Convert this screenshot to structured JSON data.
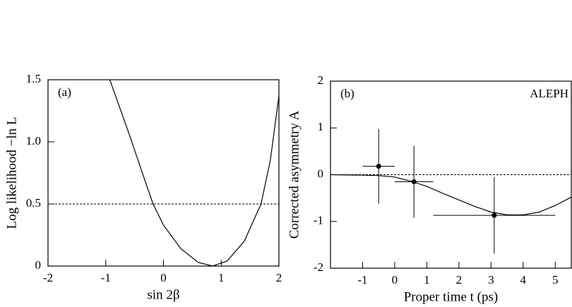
{
  "chart_data": [
    {
      "type": "line",
      "panel_label": "(a)",
      "xlabel": "sin 2β",
      "ylabel": "Log likelihood  −ln L",
      "x": [
        -0.93,
        -0.6,
        -0.3,
        -0.18,
        0,
        0.3,
        0.6,
        0.85,
        1.1,
        1.4,
        1.69,
        1.85,
        2.0
      ],
      "values": [
        1.5,
        1.07,
        0.66,
        0.5,
        0.33,
        0.14,
        0.03,
        0,
        0.04,
        0.2,
        0.5,
        0.85,
        1.37
      ],
      "hline": 0.5,
      "color": "#000000",
      "xlim": [
        -2,
        2
      ],
      "xticks": [
        -2,
        -1,
        0,
        1,
        2
      ],
      "ylim": [
        0,
        1.5
      ],
      "yticks": [
        0,
        0.5,
        {
          "value": 1,
          "label": "1.0"
        },
        1.5
      ]
    },
    {
      "type": "errorbar",
      "panel_label": "(b)",
      "annotation": "ALEPH",
      "xlabel": "Proper time  t  (ps)",
      "ylabel": "Corrected asymmetry  A",
      "curve": {
        "x": [
          -2,
          -1,
          -0.5,
          0,
          0.5,
          1,
          1.5,
          2,
          2.5,
          3,
          3.5,
          4,
          4.5,
          5,
          5.5
        ],
        "values": [
          0,
          -0.01,
          -0.02,
          -0.05,
          -0.14,
          -0.25,
          -0.4,
          -0.54,
          -0.68,
          -0.8,
          -0.86,
          -0.86,
          -0.8,
          -0.66,
          -0.48
        ]
      },
      "points": {
        "x": [
          -0.5,
          0.6,
          3.1
        ],
        "values": [
          0.18,
          -0.15,
          -0.87
        ],
        "xerr": [
          0.5,
          0.6,
          1.9
        ],
        "yerr": [
          0.8,
          0.77,
          0.82
        ]
      },
      "hline": 0,
      "color": "#000000",
      "xlim": [
        -2,
        5.5
      ],
      "xticks": [
        -1,
        0,
        1,
        2,
        3,
        4,
        5
      ],
      "ylim": [
        -2,
        2
      ],
      "yticks": [
        -2,
        -1,
        0,
        1,
        2
      ]
    }
  ]
}
